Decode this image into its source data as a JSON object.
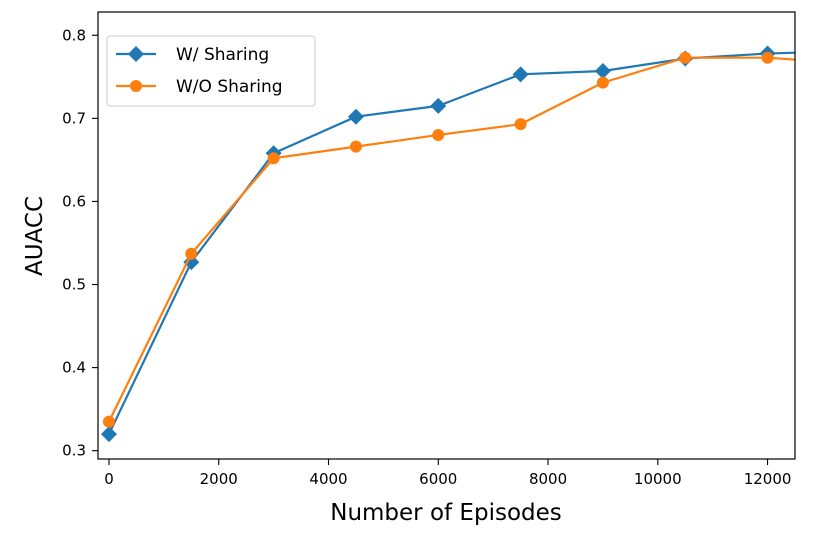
{
  "chart_data": {
    "type": "line",
    "title": "",
    "xlabel": "Number of Episodes",
    "ylabel": "AUACC",
    "xlim": [
      -200,
      12500
    ],
    "ylim": [
      0.29,
      0.828
    ],
    "xticks": [
      0,
      2000,
      4000,
      6000,
      8000,
      10000,
      12000
    ],
    "yticks": [
      0.3,
      0.4,
      0.5,
      0.6,
      0.7,
      0.8
    ],
    "ytick_labels": [
      "0.3",
      "0.4",
      "0.5",
      "0.6",
      "0.7",
      "0.8"
    ],
    "x": [
      0,
      1500,
      3000,
      4500,
      6000,
      7500,
      9000,
      10500,
      12000,
      13500
    ],
    "series": [
      {
        "name": "W/ Sharing",
        "color": "#1f77b4",
        "marker": "diamond",
        "values": [
          0.32,
          0.527,
          0.658,
          0.702,
          0.715,
          0.753,
          0.757,
          0.772,
          0.778,
          0.781
        ]
      },
      {
        "name": "W/O Sharing",
        "color": "#ff7f0e",
        "marker": "circle",
        "values": [
          0.335,
          0.537,
          0.652,
          0.666,
          0.68,
          0.693,
          0.743,
          0.773,
          0.773,
          0.766
        ]
      }
    ],
    "legend_position": "upper-left",
    "grid": false
  }
}
